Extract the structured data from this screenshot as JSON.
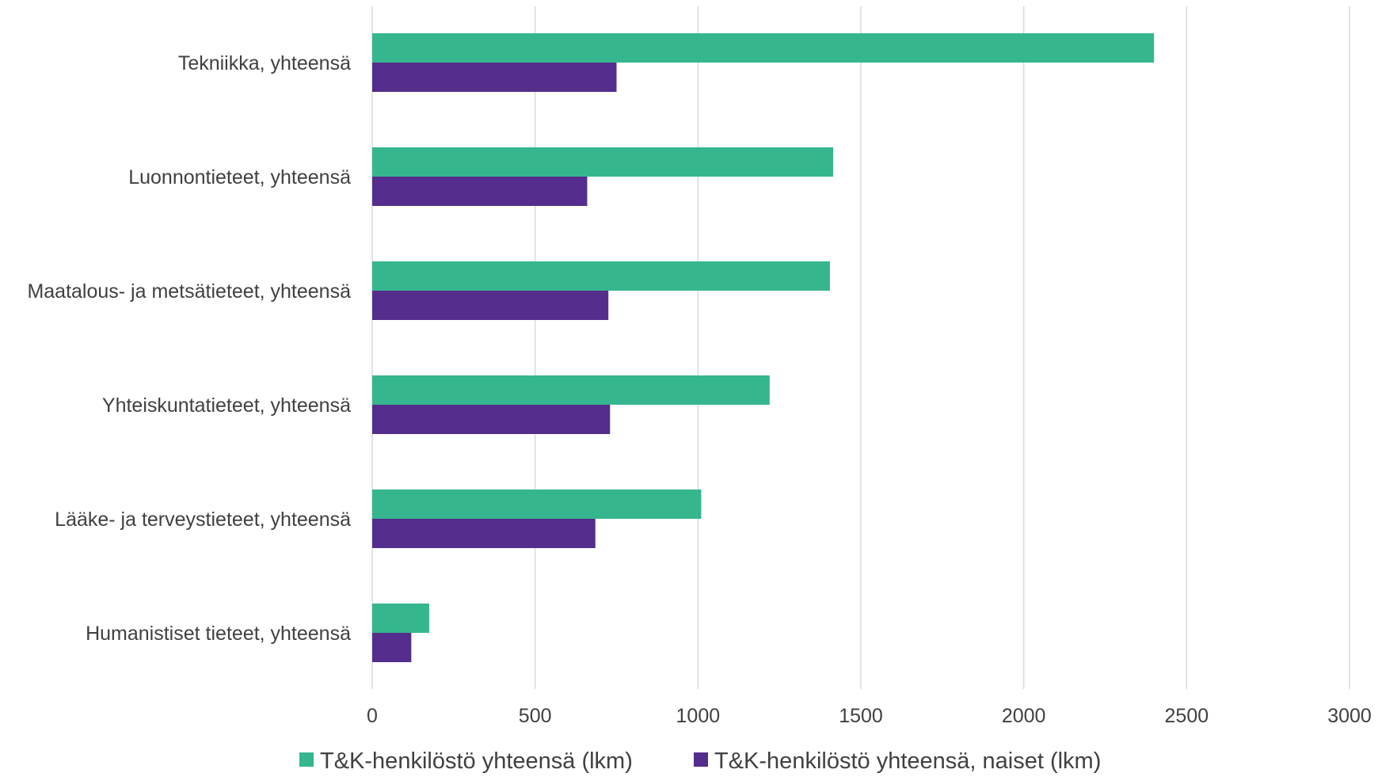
{
  "chart_data": {
    "type": "bar",
    "orientation": "horizontal",
    "title": "",
    "xlabel": "",
    "ylabel": "",
    "categories": [
      "Tekniikka, yhteensä",
      "Luonnontieteet, yhteensä",
      "Maatalous- ja metsätieteet, yhteensä",
      "Yhteiskuntatieteet, yhteensä",
      "Lääke- ja terveystieteet, yhteensä",
      "Humanistiset tieteet, yhteensä"
    ],
    "series": [
      {
        "name": "T&K-henkilöstö yhteensä (lkm)",
        "color": "#36B68E",
        "values": [
          2400,
          1415,
          1405,
          1220,
          1010,
          175
        ]
      },
      {
        "name": "T&K-henkilöstö yhteensä, naiset (lkm)",
        "color": "#552D8C",
        "values": [
          750,
          660,
          725,
          730,
          685,
          120
        ]
      }
    ],
    "xlim": [
      0,
      3000
    ],
    "x_ticks": [
      "0",
      "500",
      "1000",
      "1500",
      "2000",
      "2500",
      "3000"
    ],
    "grid": "vertical",
    "grid_color": "#D9D9D9",
    "legend_position": "bottom"
  }
}
